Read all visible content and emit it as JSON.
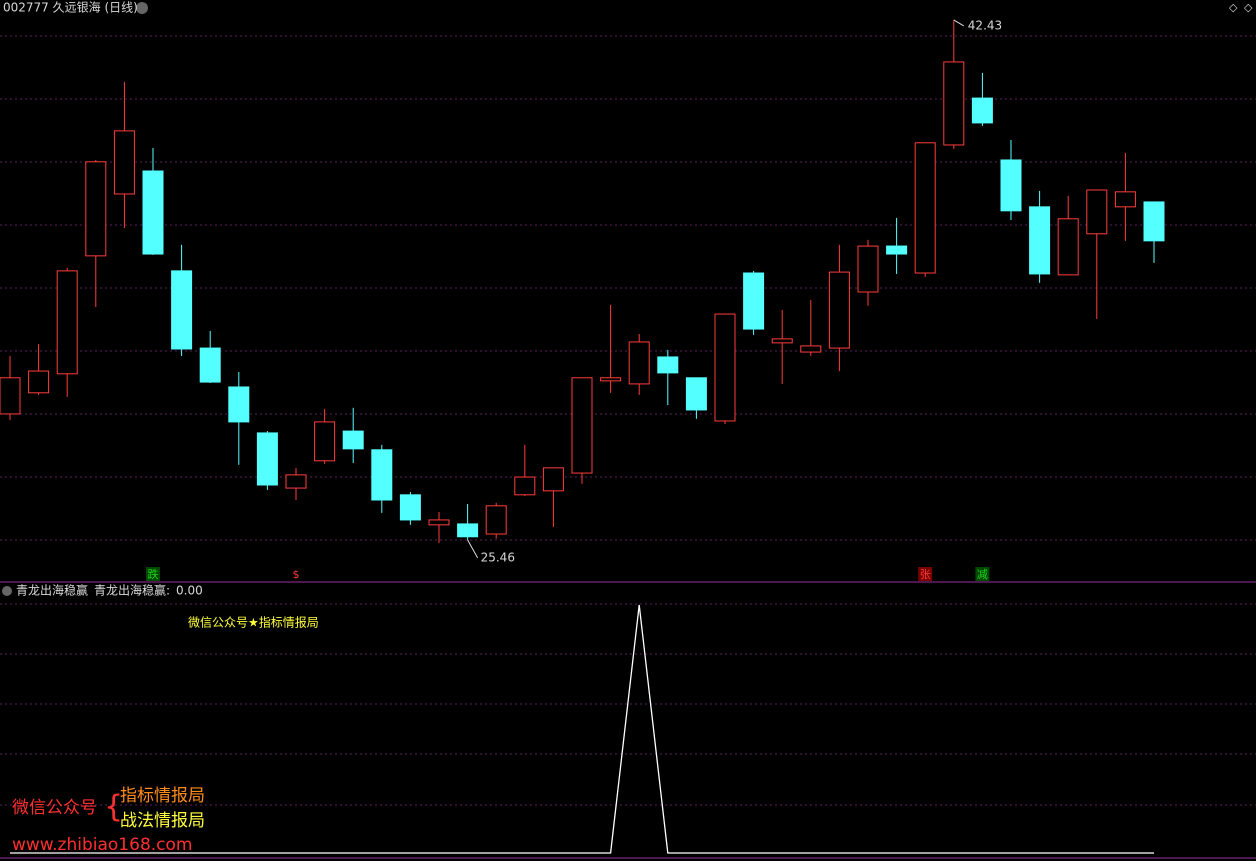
{
  "chart_data": [
    {
      "type": "candlestick",
      "title": "002777 久远银海 (日线)",
      "categories": [
        null,
        null,
        null,
        null,
        null,
        null,
        null,
        null,
        null,
        null,
        null,
        null,
        null,
        null,
        null,
        null,
        null,
        null,
        null,
        null,
        null,
        null,
        null,
        null,
        null,
        null,
        null,
        null,
        null,
        null,
        null,
        null,
        null,
        null,
        null,
        null,
        null,
        null,
        null,
        null,
        null
      ],
      "open": [
        29.57,
        30.26,
        30.88,
        34.73,
        36.75,
        37.5,
        34.24,
        31.72,
        30.45,
        28.95,
        27.15,
        28.04,
        29.01,
        28.4,
        26.93,
        25.95,
        25.98,
        25.65,
        26.93,
        27.06,
        27.64,
        30.65,
        30.55,
        31.43,
        30.75,
        29.34,
        34.17,
        31.89,
        31.59,
        31.72,
        33.55,
        35.05,
        34.17,
        38.35,
        39.88,
        37.86,
        36.33,
        34.11,
        35.45,
        36.33,
        36.49
      ],
      "high": [
        31.46,
        31.85,
        34.34,
        37.86,
        40.41,
        38.25,
        35.09,
        32.28,
        30.94,
        29.01,
        27.81,
        29.73,
        29.77,
        28.56,
        27.02,
        26.37,
        26.63,
        26.67,
        28.56,
        27.81,
        30.75,
        33.13,
        32.18,
        31.66,
        30.75,
        32.83,
        34.24,
        32.96,
        33.29,
        35.09,
        35.25,
        35.97,
        38.42,
        42.43,
        40.7,
        38.51,
        36.85,
        36.69,
        36.88,
        38.09,
        36.49
      ],
      "low": [
        29.37,
        30.19,
        30.13,
        33.06,
        35.64,
        34.76,
        31.46,
        30.58,
        27.91,
        27.09,
        26.76,
        27.94,
        27.97,
        26.34,
        25.95,
        25.36,
        25.46,
        25.5,
        26.89,
        25.88,
        27.29,
        30.26,
        30.19,
        29.86,
        29.41,
        29.24,
        32.15,
        30.55,
        31.46,
        30.97,
        33.1,
        34.14,
        34.04,
        38.22,
        38.97,
        35.9,
        33.85,
        34.11,
        32.67,
        35.22,
        34.5
      ],
      "close": [
        30.75,
        30.97,
        34.24,
        37.8,
        38.81,
        34.79,
        31.69,
        30.61,
        29.31,
        27.25,
        27.58,
        29.31,
        28.43,
        26.76,
        26.11,
        26.11,
        25.56,
        26.57,
        27.51,
        27.81,
        30.75,
        30.75,
        31.92,
        30.91,
        29.7,
        32.83,
        32.34,
        32.02,
        31.79,
        34.2,
        35.05,
        34.79,
        38.42,
        41.06,
        39.07,
        36.2,
        34.14,
        35.94,
        36.88,
        36.82,
        35.22
      ],
      "up_color": "#ff3c3c",
      "down_color": "#54ffff",
      "high_mark_index": 33,
      "low_mark_index": 16,
      "signals": [
        null,
        null,
        null,
        null,
        null,
        "跌",
        null,
        null,
        null,
        null,
        "$",
        null,
        null,
        null,
        null,
        null,
        null,
        null,
        null,
        null,
        null,
        null,
        null,
        null,
        null,
        null,
        null,
        null,
        null,
        null,
        null,
        null,
        "张",
        null,
        "减",
        null,
        null,
        null,
        null,
        null,
        null
      ],
      "signal_colors": [
        null,
        null,
        null,
        null,
        null,
        "#1fd31f",
        null,
        null,
        null,
        null,
        "#ff3c3c",
        null,
        null,
        null,
        null,
        null,
        null,
        null,
        null,
        null,
        null,
        null,
        null,
        null,
        null,
        null,
        null,
        null,
        null,
        null,
        null,
        null,
        "#ff3c3c",
        null,
        "#1fd31f",
        null,
        null,
        null,
        null,
        null,
        null
      ],
      "ylim": [
        24.9,
        43.0
      ]
    },
    {
      "type": "line",
      "title": "青龙出海稳赢",
      "annotation": "微信公众号★指标情报局",
      "series": [
        {
          "name": "青龙出海稳赢",
          "color": "#ffffff",
          "values": [
            0,
            0,
            0,
            0,
            0,
            0,
            0,
            0,
            0,
            0,
            0,
            0,
            0,
            0,
            0,
            0,
            0,
            0,
            0,
            0,
            0,
            0,
            1,
            0,
            0,
            0,
            0,
            0,
            0,
            0,
            0,
            0,
            0,
            0,
            0,
            0,
            0,
            0,
            0,
            0,
            0
          ],
          "value_labels": [
            null,
            null,
            null,
            null,
            null,
            null,
            null,
            null,
            null,
            null,
            null,
            null,
            null,
            null,
            null,
            null,
            null,
            null,
            null,
            null,
            null,
            null,
            null,
            null,
            null,
            null,
            null,
            null,
            null,
            null,
            null,
            null,
            null,
            null,
            null,
            null,
            null,
            null,
            null,
            null,
            "0.00"
          ]
        }
      ],
      "ylim": [
        0,
        1
      ],
      "watermark": {
        "left": "微信公众号",
        "lines": [
          "指标情报局",
          "战法情报局"
        ],
        "url": "www.zhibiao168.com"
      }
    }
  ]
}
